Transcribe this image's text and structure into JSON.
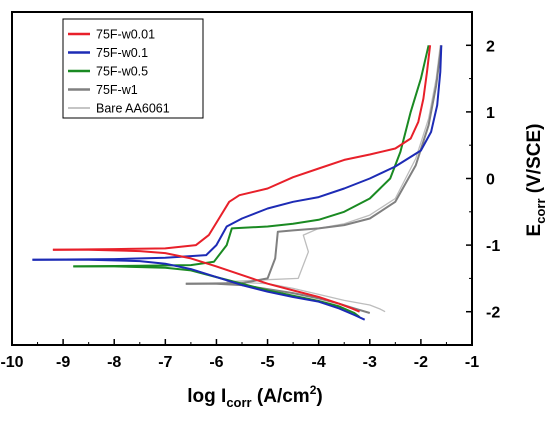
{
  "chart_data": {
    "type": "line",
    "title": "",
    "xlabel": {
      "main": "log I",
      "sub": "corr",
      "unit_pre": " (A/cm",
      "sup": "2",
      "unit_post": ")"
    },
    "ylabel": {
      "main": "E",
      "sub": "corr",
      "unit": " (V/SCE)"
    },
    "xlim": [
      -10,
      -1
    ],
    "ylim": [
      -2.5,
      2.5
    ],
    "x_ticks": [
      "-10",
      "-9",
      "-8",
      "-7",
      "-6",
      "-5",
      "-4",
      "-3",
      "-2",
      "-1"
    ],
    "x_tick_values": [
      -10,
      -9,
      -8,
      -7,
      -6,
      -5,
      -4,
      -3,
      -2,
      -1
    ],
    "y_ticks": [
      "-2",
      "-1",
      "0",
      "1",
      "2"
    ],
    "y_tick_values": [
      -2,
      -1,
      0,
      1,
      2
    ],
    "y_axis_position": "right",
    "grid": false,
    "legend_position": "top-left",
    "series": [
      {
        "name": "75F-w0.01",
        "color": "#e8202a",
        "width": 2,
        "points": [
          [
            -9.2,
            -1.07
          ],
          [
            -8.0,
            -1.06
          ],
          [
            -7.0,
            -1.05
          ],
          [
            -6.4,
            -1.0
          ],
          [
            -6.15,
            -0.85
          ],
          [
            -5.95,
            -0.6
          ],
          [
            -5.75,
            -0.35
          ],
          [
            -5.55,
            -0.25
          ],
          [
            -5.0,
            -0.15
          ],
          [
            -4.5,
            0.02
          ],
          [
            -4.0,
            0.15
          ],
          [
            -3.5,
            0.28
          ],
          [
            -3.0,
            0.36
          ],
          [
            -2.5,
            0.45
          ],
          [
            -2.2,
            0.6
          ],
          [
            -2.05,
            0.85
          ],
          [
            -1.95,
            1.2
          ],
          [
            -1.88,
            1.6
          ],
          [
            -1.82,
            2.0
          ]
        ],
        "cathodic": [
          [
            -9.2,
            -1.07
          ],
          [
            -8.5,
            -1.07
          ],
          [
            -7.5,
            -1.09
          ],
          [
            -7.0,
            -1.12
          ],
          [
            -6.5,
            -1.2
          ],
          [
            -6.0,
            -1.32
          ],
          [
            -5.5,
            -1.45
          ],
          [
            -5.0,
            -1.58
          ],
          [
            -4.5,
            -1.68
          ],
          [
            -4.0,
            -1.78
          ],
          [
            -3.6,
            -1.88
          ],
          [
            -3.35,
            -1.95
          ],
          [
            -3.2,
            -2.0
          ]
        ]
      },
      {
        "name": "75F-w0.1",
        "color": "#1d2bb5",
        "width": 2,
        "points": [
          [
            -9.6,
            -1.22
          ],
          [
            -8.0,
            -1.21
          ],
          [
            -7.0,
            -1.19
          ],
          [
            -6.2,
            -1.15
          ],
          [
            -6.0,
            -1.0
          ],
          [
            -5.8,
            -0.72
          ],
          [
            -5.5,
            -0.6
          ],
          [
            -5.0,
            -0.45
          ],
          [
            -4.5,
            -0.35
          ],
          [
            -4.0,
            -0.28
          ],
          [
            -3.5,
            -0.15
          ],
          [
            -3.0,
            0.0
          ],
          [
            -2.5,
            0.18
          ],
          [
            -2.0,
            0.42
          ],
          [
            -1.8,
            0.7
          ],
          [
            -1.68,
            1.1
          ],
          [
            -1.62,
            1.6
          ],
          [
            -1.6,
            2.0
          ]
        ],
        "cathodic": [
          [
            -9.6,
            -1.22
          ],
          [
            -8.5,
            -1.22
          ],
          [
            -7.5,
            -1.24
          ],
          [
            -7.0,
            -1.28
          ],
          [
            -6.5,
            -1.36
          ],
          [
            -6.0,
            -1.48
          ],
          [
            -5.5,
            -1.6
          ],
          [
            -5.0,
            -1.7
          ],
          [
            -4.5,
            -1.78
          ],
          [
            -4.0,
            -1.85
          ],
          [
            -3.6,
            -1.95
          ],
          [
            -3.3,
            -2.05
          ],
          [
            -3.1,
            -2.12
          ]
        ]
      },
      {
        "name": "75F-w0.5",
        "color": "#1a8a22",
        "width": 2,
        "points": [
          [
            -8.8,
            -1.32
          ],
          [
            -7.5,
            -1.31
          ],
          [
            -6.5,
            -1.3
          ],
          [
            -6.05,
            -1.25
          ],
          [
            -5.8,
            -1.0
          ],
          [
            -5.7,
            -0.75
          ],
          [
            -5.0,
            -0.72
          ],
          [
            -4.5,
            -0.68
          ],
          [
            -4.0,
            -0.62
          ],
          [
            -3.5,
            -0.5
          ],
          [
            -3.0,
            -0.3
          ],
          [
            -2.6,
            0.0
          ],
          [
            -2.4,
            0.4
          ],
          [
            -2.2,
            1.0
          ],
          [
            -2.0,
            1.5
          ],
          [
            -1.85,
            2.0
          ]
        ],
        "cathodic": [
          [
            -8.8,
            -1.32
          ],
          [
            -8.0,
            -1.32
          ],
          [
            -7.0,
            -1.34
          ],
          [
            -6.5,
            -1.38
          ],
          [
            -6.0,
            -1.48
          ],
          [
            -5.5,
            -1.58
          ],
          [
            -5.0,
            -1.68
          ],
          [
            -4.5,
            -1.76
          ],
          [
            -4.0,
            -1.84
          ],
          [
            -3.6,
            -1.92
          ],
          [
            -3.3,
            -2.02
          ],
          [
            -3.2,
            -2.08
          ]
        ]
      },
      {
        "name": "75F-w1",
        "color": "#808080",
        "width": 2,
        "points": [
          [
            -6.6,
            -1.58
          ],
          [
            -5.5,
            -1.57
          ],
          [
            -5.0,
            -1.5
          ],
          [
            -4.85,
            -1.2
          ],
          [
            -4.8,
            -0.8
          ],
          [
            -4.5,
            -0.78
          ],
          [
            -4.0,
            -0.75
          ],
          [
            -3.5,
            -0.7
          ],
          [
            -3.0,
            -0.6
          ],
          [
            -2.5,
            -0.35
          ],
          [
            -2.1,
            0.2
          ],
          [
            -1.85,
            0.8
          ],
          [
            -1.7,
            1.4
          ],
          [
            -1.6,
            2.0
          ]
        ],
        "cathodic": [
          [
            -6.6,
            -1.58
          ],
          [
            -6.0,
            -1.58
          ],
          [
            -5.5,
            -1.6
          ],
          [
            -5.0,
            -1.66
          ],
          [
            -4.5,
            -1.72
          ],
          [
            -4.0,
            -1.8
          ],
          [
            -3.6,
            -1.88
          ],
          [
            -3.3,
            -1.95
          ],
          [
            -3.0,
            -2.02
          ]
        ]
      },
      {
        "name": "Bare AA6061",
        "color": "#bdbdbd",
        "width": 1.3,
        "points": [
          [
            -5.8,
            -1.55
          ],
          [
            -5.0,
            -1.52
          ],
          [
            -4.4,
            -1.5
          ],
          [
            -4.2,
            -1.1
          ],
          [
            -4.3,
            -0.85
          ],
          [
            -4.0,
            -0.75
          ],
          [
            -3.5,
            -0.68
          ],
          [
            -3.0,
            -0.55
          ],
          [
            -2.5,
            -0.3
          ],
          [
            -2.1,
            0.3
          ],
          [
            -1.85,
            0.9
          ],
          [
            -1.7,
            1.5
          ],
          [
            -1.62,
            2.0
          ]
        ],
        "cathodic": [
          [
            -5.8,
            -1.55
          ],
          [
            -5.0,
            -1.58
          ],
          [
            -4.5,
            -1.65
          ],
          [
            -4.0,
            -1.74
          ],
          [
            -3.5,
            -1.83
          ],
          [
            -3.0,
            -1.9
          ],
          [
            -2.8,
            -1.96
          ],
          [
            -2.7,
            -2.0
          ]
        ]
      }
    ]
  }
}
